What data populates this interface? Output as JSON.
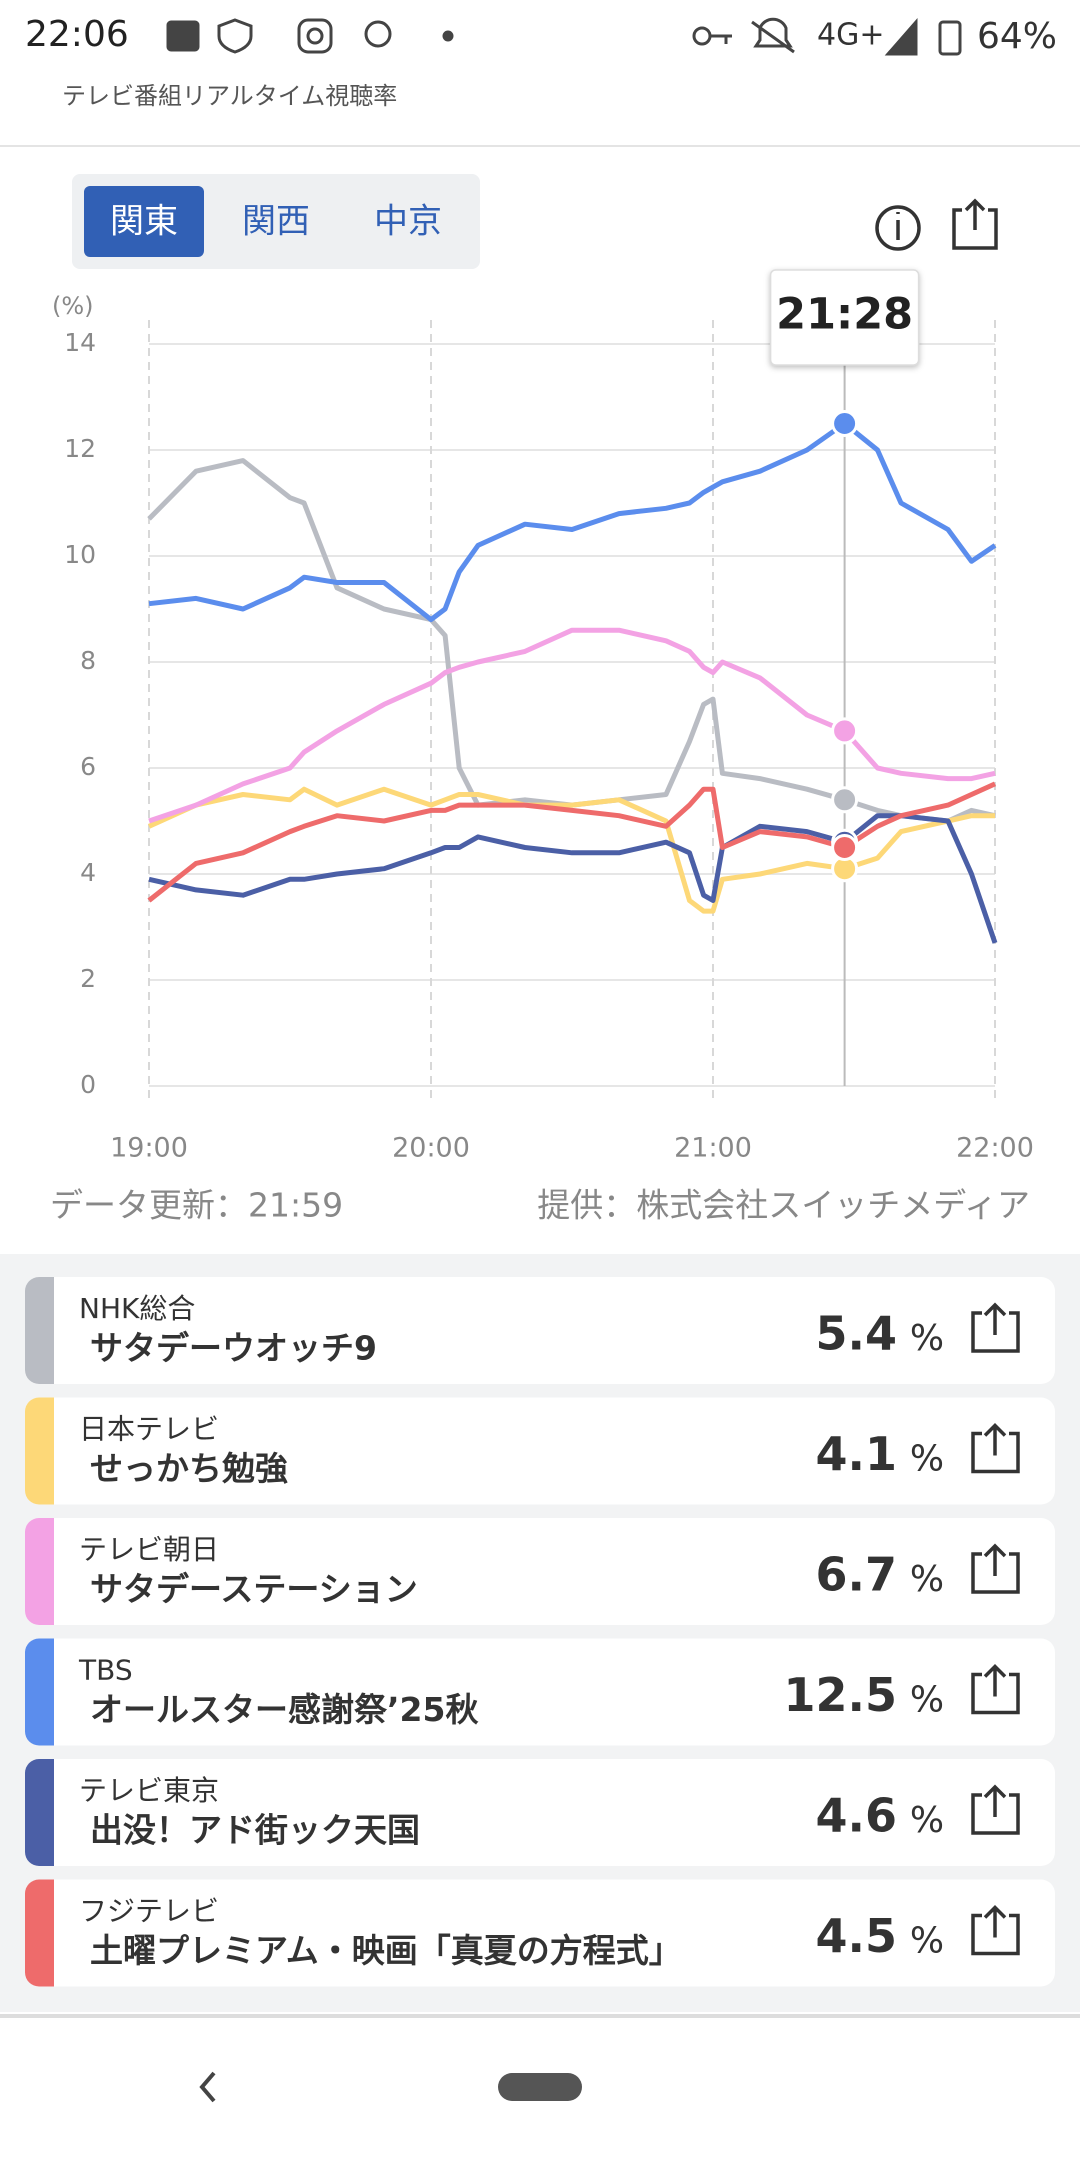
{
  "status_bar": {
    "time": "22:06",
    "network": "4G+",
    "battery": "64%"
  },
  "header": {
    "subtitle": "テレビ番組リアルタイム視聴率"
  },
  "tabs": [
    "関東",
    "関西",
    "中京"
  ],
  "chart_data": {
    "type": "line",
    "ylabel": "(%)",
    "x": [
      "19:00",
      "19:10",
      "19:20",
      "19:30",
      "19:33",
      "19:40",
      "19:50",
      "20:00",
      "20:03",
      "20:06",
      "20:10",
      "20:20",
      "20:30",
      "20:40",
      "20:50",
      "20:55",
      "20:58",
      "21:00",
      "21:02",
      "21:10",
      "21:20",
      "21:28",
      "21:35",
      "21:40",
      "21:50",
      "21:55",
      "22:00"
    ],
    "xlim": [
      "19:00",
      "22:00"
    ],
    "xticks": [
      "19:00",
      "20:00",
      "21:00",
      "22:00"
    ],
    "ylim": [
      0,
      14
    ],
    "yticks": [
      0,
      2,
      4,
      6,
      8,
      10,
      12,
      14
    ],
    "grid": true,
    "tooltip": "21:28",
    "series": [
      {
        "name": "NHK総合",
        "color": "#b9bcc3",
        "values": [
          10.7,
          11.6,
          11.8,
          11.1,
          11.0,
          9.4,
          9.0,
          8.8,
          8.5,
          6.0,
          5.3,
          5.4,
          5.3,
          5.4,
          5.5,
          6.5,
          7.2,
          7.3,
          5.9,
          5.8,
          5.6,
          5.4,
          5.2,
          5.1,
          5.0,
          5.2,
          5.1
        ]
      },
      {
        "name": "日本テレビ",
        "color": "#fdd878",
        "values": [
          4.9,
          5.3,
          5.5,
          5.4,
          5.6,
          5.3,
          5.6,
          5.3,
          5.4,
          5.5,
          5.5,
          5.3,
          5.3,
          5.4,
          5.0,
          3.5,
          3.3,
          3.3,
          3.9,
          4.0,
          4.2,
          4.1,
          4.3,
          4.8,
          5.0,
          5.1,
          5.1
        ]
      },
      {
        "name": "テレビ朝日",
        "color": "#f3a2e4",
        "values": [
          5.0,
          5.3,
          5.7,
          6.0,
          6.3,
          6.7,
          7.2,
          7.6,
          7.8,
          7.9,
          8.0,
          8.2,
          8.6,
          8.6,
          8.4,
          8.2,
          7.9,
          7.8,
          8.0,
          7.7,
          7.0,
          6.7,
          6.0,
          5.9,
          5.8,
          5.8,
          5.9
        ]
      },
      {
        "name": "TBS",
        "color": "#5b8ded",
        "values": [
          9.1,
          9.2,
          9.0,
          9.4,
          9.6,
          9.5,
          9.5,
          8.8,
          9.0,
          9.7,
          10.2,
          10.6,
          10.5,
          10.8,
          10.9,
          11.0,
          11.2,
          11.3,
          11.4,
          11.6,
          12.0,
          12.5,
          12.0,
          11.0,
          10.5,
          9.9,
          10.2
        ]
      },
      {
        "name": "テレビ東京",
        "color": "#4b5fa6",
        "values": [
          3.9,
          3.7,
          3.6,
          3.9,
          3.9,
          4.0,
          4.1,
          4.4,
          4.5,
          4.5,
          4.7,
          4.5,
          4.4,
          4.4,
          4.6,
          4.4,
          3.6,
          3.5,
          4.5,
          4.9,
          4.8,
          4.6,
          5.1,
          5.1,
          5.0,
          4.0,
          2.7
        ]
      },
      {
        "name": "フジテレビ",
        "color": "#ee6b6b",
        "values": [
          3.5,
          4.2,
          4.4,
          4.8,
          4.9,
          5.1,
          5.0,
          5.2,
          5.2,
          5.3,
          5.3,
          5.3,
          5.2,
          5.1,
          4.9,
          5.3,
          5.6,
          5.6,
          4.5,
          4.8,
          4.7,
          4.5,
          4.9,
          5.1,
          5.3,
          5.5,
          5.7
        ]
      }
    ],
    "programs": [
      "サタデーウオッチ9",
      "せっかち勉強",
      "サタデーステーション",
      "オールスター感謝祭’25秋",
      "出没！アド街ック天国",
      "土曜プレミアム・映画「真夏の方程式」"
    ],
    "value_unit": "%"
  },
  "footer": {
    "updated": "データ更新：21:59",
    "source": "提供：株式会社スイッチメディア"
  }
}
